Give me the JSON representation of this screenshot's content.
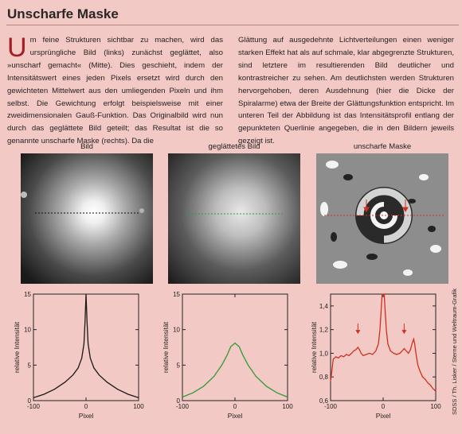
{
  "title": "Unscharfe Maske",
  "dropcap": "U",
  "left_text": "m feine Strukturen sichtbar zu machen, wird das ursprüngliche Bild (links) zunächst geglättet, also »unscharf gemacht« (Mitte). Dies geschieht, indem der Intensitätswert eines jeden Pixels ersetzt wird durch den gewichteten Mittelwert aus den umliegenden Pixeln und ihm selbst. Die Gewichtung erfolgt beispielsweise mit einer zweidimensionalen Gauß-Funktion. Das Originalbild wird nun durch das geglättete Bild geteilt; das Resultat ist die so genannte unscharfe Maske (rechts). Da die",
  "right_text": "Glättung auf ausgedehnte Lichtverteilungen einen weniger starken Effekt hat als auf schmale, klar abgegrenzte Strukturen, sind letztere im resultierenden Bild deutlicher und kontrastreicher zu sehen. Am deutlichsten werden Strukturen hervorgehoben, deren Ausdehnung (hier die Dicke der Spiralarme) etwa der Breite der Glättungsfunktion entspricht. Im unteren Teil der Abbildung ist das Intensitätsprofil entlang der gepunkteten Querlinie angegeben, die in den Bildern jeweils gezeigt ist.",
  "panels": [
    {
      "label": "Bild",
      "profile_line_color": "#1a1a1a"
    },
    {
      "label": "geglättetes Bild",
      "profile_line_color": "#2e9b3a"
    },
    {
      "label": "unscharfe Maske",
      "profile_line_color": "#d0301f"
    }
  ],
  "credit": "SDSS / Th. Lisker / Sterne und Weltraum-Grafik",
  "chart_data": [
    {
      "type": "line",
      "ylabel": "relative Intensität",
      "xlabel": "Pixel",
      "xlim": [
        -100,
        100
      ],
      "ylim": [
        0,
        15
      ],
      "xticks": [
        "-100",
        "0",
        "100"
      ],
      "yticks": [
        "0",
        "5",
        "10",
        "15"
      ],
      "color": "#1a1a1a",
      "series": [
        {
          "x": [
            -100,
            -80,
            -60,
            -40,
            -25,
            -15,
            -8,
            -4,
            -2,
            0,
            2,
            4,
            8,
            15,
            25,
            40,
            60,
            80,
            100
          ],
          "y": [
            0.4,
            0.9,
            1.6,
            2.6,
            3.6,
            4.6,
            6.0,
            8.0,
            11.0,
            15,
            11.0,
            8.0,
            6.0,
            4.6,
            3.6,
            2.6,
            1.6,
            0.9,
            0.4
          ]
        }
      ]
    },
    {
      "type": "line",
      "ylabel": "relative Intensität",
      "xlabel": "Pixel",
      "xlim": [
        -100,
        100
      ],
      "ylim": [
        0,
        15
      ],
      "xticks": [
        "-100",
        "0",
        "100"
      ],
      "yticks": [
        "0",
        "5",
        "10",
        "15"
      ],
      "color": "#2e9b3a",
      "series": [
        {
          "x": [
            -100,
            -80,
            -60,
            -40,
            -25,
            -15,
            -8,
            0,
            8,
            15,
            25,
            40,
            60,
            80,
            100
          ],
          "y": [
            0.5,
            1.1,
            2.0,
            3.4,
            5.0,
            6.4,
            7.6,
            8.1,
            7.6,
            6.4,
            5.0,
            3.4,
            2.0,
            1.1,
            0.5
          ]
        }
      ]
    },
    {
      "type": "line",
      "ylabel": "relative Intensität",
      "xlabel": "Pixel",
      "xlim": [
        -100,
        100
      ],
      "ylim": [
        0.6,
        1.5
      ],
      "xticks": [
        "-100",
        "0",
        "100"
      ],
      "yticks": [
        "0,6",
        "0,8",
        "1,0",
        "1,2",
        "1,4"
      ],
      "color": "#d0301f",
      "annotations": [
        "arrow at x=-48",
        "arrow at x=40"
      ],
      "series": [
        {
          "x": [
            -100,
            -95,
            -90,
            -85,
            -80,
            -75,
            -70,
            -65,
            -60,
            -56,
            -52,
            -48,
            -45,
            -42,
            -38,
            -32,
            -26,
            -20,
            -14,
            -9,
            -6,
            -4,
            -2,
            0,
            2,
            4,
            6,
            9,
            14,
            20,
            26,
            32,
            36,
            40,
            44,
            48,
            52,
            55,
            58,
            60,
            63,
            66,
            70,
            75,
            80,
            85,
            90,
            95,
            100
          ],
          "y": [
            0.76,
            0.95,
            0.97,
            0.96,
            0.98,
            0.97,
            0.99,
            0.98,
            1.0,
            1.02,
            1.03,
            1.05,
            1.03,
            1.0,
            0.98,
            0.99,
            1.0,
            0.99,
            1.02,
            1.08,
            1.2,
            1.35,
            1.5,
            1.5,
            1.5,
            1.35,
            1.2,
            1.08,
            1.02,
            1.0,
            0.99,
            1.0,
            1.02,
            1.04,
            1.02,
            1.0,
            1.03,
            1.08,
            1.12,
            1.08,
            0.98,
            0.9,
            0.85,
            0.8,
            0.78,
            0.75,
            0.73,
            0.7,
            0.68
          ]
        }
      ]
    }
  ]
}
